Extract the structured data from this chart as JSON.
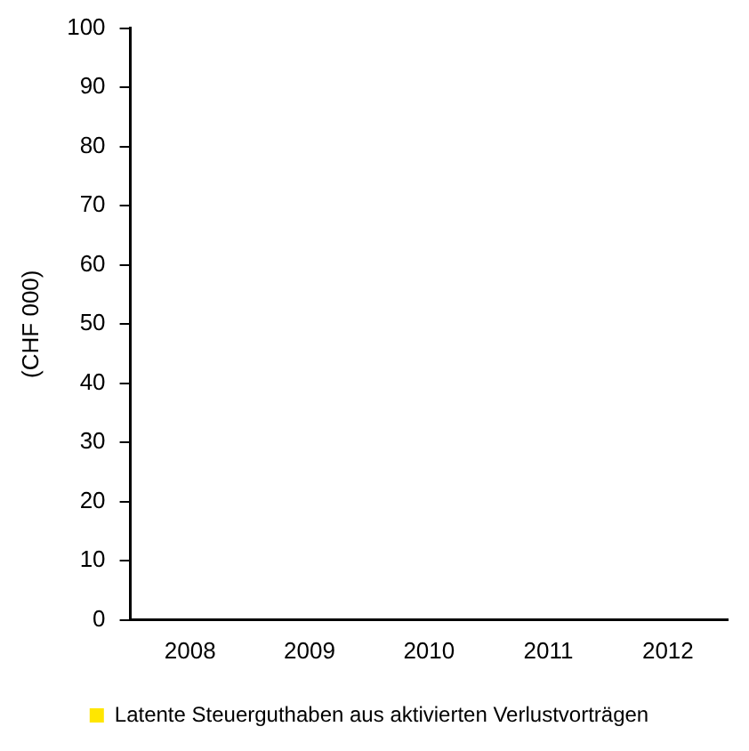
{
  "chart_data": {
    "type": "bar",
    "ylabel": "(CHF 000)",
    "categories": [
      "2008",
      "2009",
      "2010",
      "2011",
      "2012"
    ],
    "series": [
      {
        "name": "Latente Steuerguthaben aus aktivierten Verlustvorträgen",
        "color": "#ffe600",
        "values": [
          0,
          0,
          0,
          0,
          0
        ]
      }
    ],
    "ylim": [
      0,
      100
    ],
    "yticks": [
      0,
      10,
      20,
      30,
      40,
      50,
      60,
      70,
      80,
      90,
      100
    ],
    "grid": false,
    "legend": "bottom"
  }
}
